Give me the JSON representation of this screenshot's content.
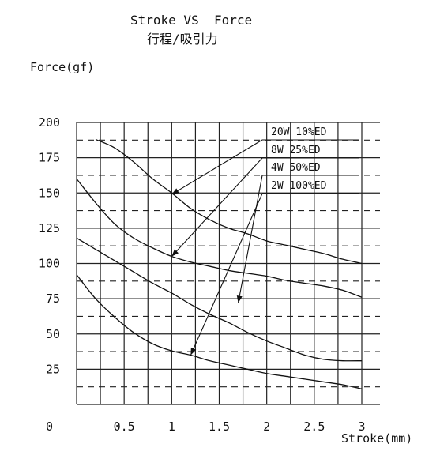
{
  "chart_data": {
    "type": "line",
    "title": "Stroke VS  Force",
    "subtitle": "行程/吸引力",
    "xlabel": "Stroke(mm)",
    "ylabel": "Force(gf)",
    "xlim": [
      0,
      3
    ],
    "ylim": [
      0,
      200
    ],
    "origin_label": "0",
    "x_ticks": [
      {
        "value": 0.5,
        "label": "0.5"
      },
      {
        "value": 1,
        "label": "1"
      },
      {
        "value": 1.5,
        "label": "1.5"
      },
      {
        "value": 2,
        "label": "2"
      },
      {
        "value": 2.5,
        "label": "2.5"
      },
      {
        "value": 3,
        "label": "3"
      }
    ],
    "y_ticks": [
      {
        "value": 25,
        "label": "25"
      },
      {
        "value": 50,
        "label": "50"
      },
      {
        "value": 75,
        "label": "75"
      },
      {
        "value": 100,
        "label": "100"
      },
      {
        "value": 125,
        "label": "125"
      },
      {
        "value": 150,
        "label": "150"
      },
      {
        "value": 175,
        "label": "175"
      },
      {
        "value": 200,
        "label": "200"
      }
    ],
    "grid": true,
    "series": [
      {
        "name": "20W  10%ED",
        "x": [
          0.2,
          0.4,
          0.6,
          0.8,
          1.0,
          1.2,
          1.4,
          1.6,
          1.8,
          2.0,
          2.2,
          2.4,
          2.6,
          2.8,
          3.0
        ],
        "y": [
          188,
          182,
          172,
          160,
          150,
          139,
          131,
          125,
          121,
          116,
          113,
          110,
          107,
          103,
          100
        ]
      },
      {
        "name": "8W  25%ED",
        "x": [
          0.0,
          0.2,
          0.4,
          0.6,
          0.8,
          1.0,
          1.2,
          1.4,
          1.6,
          1.8,
          2.0,
          2.2,
          2.4,
          2.6,
          2.8,
          3.0
        ],
        "y": [
          160,
          143,
          128,
          118,
          111,
          105,
          101,
          98,
          95,
          93,
          91,
          88,
          86,
          84,
          81,
          76
        ]
      },
      {
        "name": "4W  50%ED",
        "x": [
          0.0,
          0.2,
          0.4,
          0.6,
          0.8,
          1.0,
          1.2,
          1.4,
          1.6,
          1.8,
          2.0,
          2.2,
          2.4,
          2.6,
          2.8,
          3.0
        ],
        "y": [
          118,
          110,
          102,
          94,
          86,
          79,
          71,
          64,
          58,
          51,
          45,
          40,
          35,
          32,
          31,
          31
        ]
      },
      {
        "name": "2W  100%ED",
        "x": [
          0.0,
          0.2,
          0.4,
          0.6,
          0.8,
          1.0,
          1.2,
          1.4,
          1.6,
          1.8,
          2.0,
          2.2,
          2.4,
          2.6,
          2.8,
          3.0
        ],
        "y": [
          92,
          75,
          62,
          51,
          43,
          38,
          35,
          31,
          28,
          25,
          22,
          20,
          18,
          16,
          14,
          11
        ]
      }
    ]
  }
}
